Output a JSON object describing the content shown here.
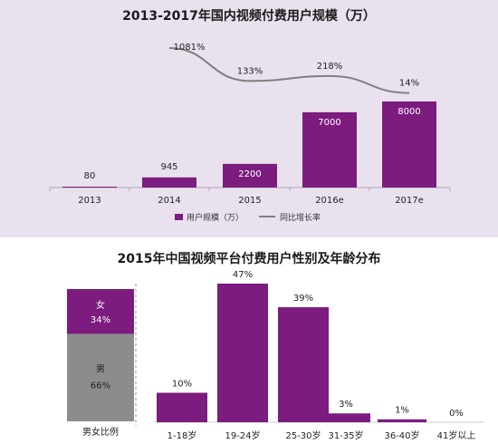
{
  "colors": {
    "purple": "#7b1c7e",
    "gray": "#8c8c8c",
    "line": "#7f7f7f",
    "top_bg": "#e9e1ee"
  },
  "chart_data": [
    {
      "type": "bar",
      "title": "2013-2017年国内视频付费用户规模（万）",
      "categories": [
        "2013",
        "2014",
        "2015",
        "2016e",
        "2017e"
      ],
      "series": [
        {
          "name": "用户规模（万）",
          "values": [
            80,
            945,
            2200,
            7000,
            8000
          ],
          "value_labels": [
            "80",
            "945",
            "2200",
            "7000",
            "8000"
          ]
        },
        {
          "name": "同比增长率",
          "type": "line",
          "values": [
            null,
            1081,
            133,
            218,
            14
          ],
          "value_labels": [
            "",
            "1081%",
            "133%",
            "218%",
            "14%"
          ]
        }
      ],
      "ylim": [
        0,
        8000
      ],
      "legend": "bottom",
      "grid": false
    },
    {
      "type": "bar",
      "title": "2015年中国视频平台付费用户性别及年龄分布",
      "gender": {
        "label": "男女比例",
        "segments": [
          {
            "name": "女",
            "value": 34,
            "value_label": "34%"
          },
          {
            "name": "男",
            "value": 66,
            "value_label": "66%"
          }
        ]
      },
      "categories": [
        "1-18岁",
        "19-24岁",
        "25-30岁",
        "31-35岁",
        "36-40岁",
        "41岁以上"
      ],
      "values": [
        10,
        47,
        39,
        3,
        1,
        0
      ],
      "value_labels": [
        "10%",
        "47%",
        "39%",
        "3%",
        "1%",
        "0%"
      ],
      "ylim": [
        0,
        47
      ],
      "grid": false
    }
  ]
}
